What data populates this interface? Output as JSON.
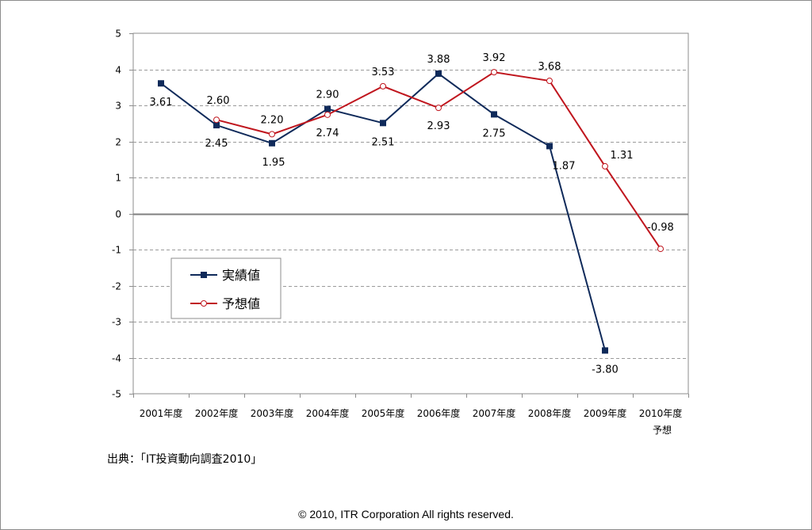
{
  "chart_data": {
    "type": "line",
    "categories": [
      "2001年度",
      "2002年度",
      "2003年度",
      "2004年度",
      "2005年度",
      "2006年度",
      "2007年度",
      "2008年度",
      "2009年度",
      "2010年度"
    ],
    "category_sublabels": [
      "",
      "",
      "",
      "",
      "",
      "",
      "",
      "",
      "",
      "予想"
    ],
    "series": [
      {
        "name": "実績値",
        "color": "#0f2a5a",
        "marker": "square",
        "values": [
          3.61,
          2.45,
          1.95,
          2.9,
          2.51,
          3.88,
          2.75,
          1.87,
          -3.8,
          null
        ],
        "labels": [
          "3.61",
          "2.45",
          "1.95",
          "2.90",
          "2.51",
          "3.88",
          "2.75",
          "1.87",
          "-3.80",
          ""
        ]
      },
      {
        "name": "予想値",
        "color": "#c0161e",
        "marker": "circle",
        "values": [
          null,
          2.6,
          2.2,
          2.74,
          3.53,
          2.93,
          3.92,
          3.68,
          1.31,
          -0.98
        ],
        "labels": [
          "",
          "2.60",
          "2.20",
          "2.74",
          "3.53",
          "2.93",
          "3.92",
          "3.68",
          "1.31",
          "-0.98"
        ]
      }
    ],
    "y_ticks": [
      "5",
      "4",
      "3",
      "2",
      "1",
      "0",
      "-1",
      "-2",
      "-3",
      "-4",
      "-5"
    ],
    "ylim": [
      -5,
      5
    ],
    "grid": true,
    "legend_position": "left-center"
  },
  "source_note": "出典：「IT投資動向調査2010」",
  "copyright": "© 2010, ITR Corporation  All rights reserved."
}
